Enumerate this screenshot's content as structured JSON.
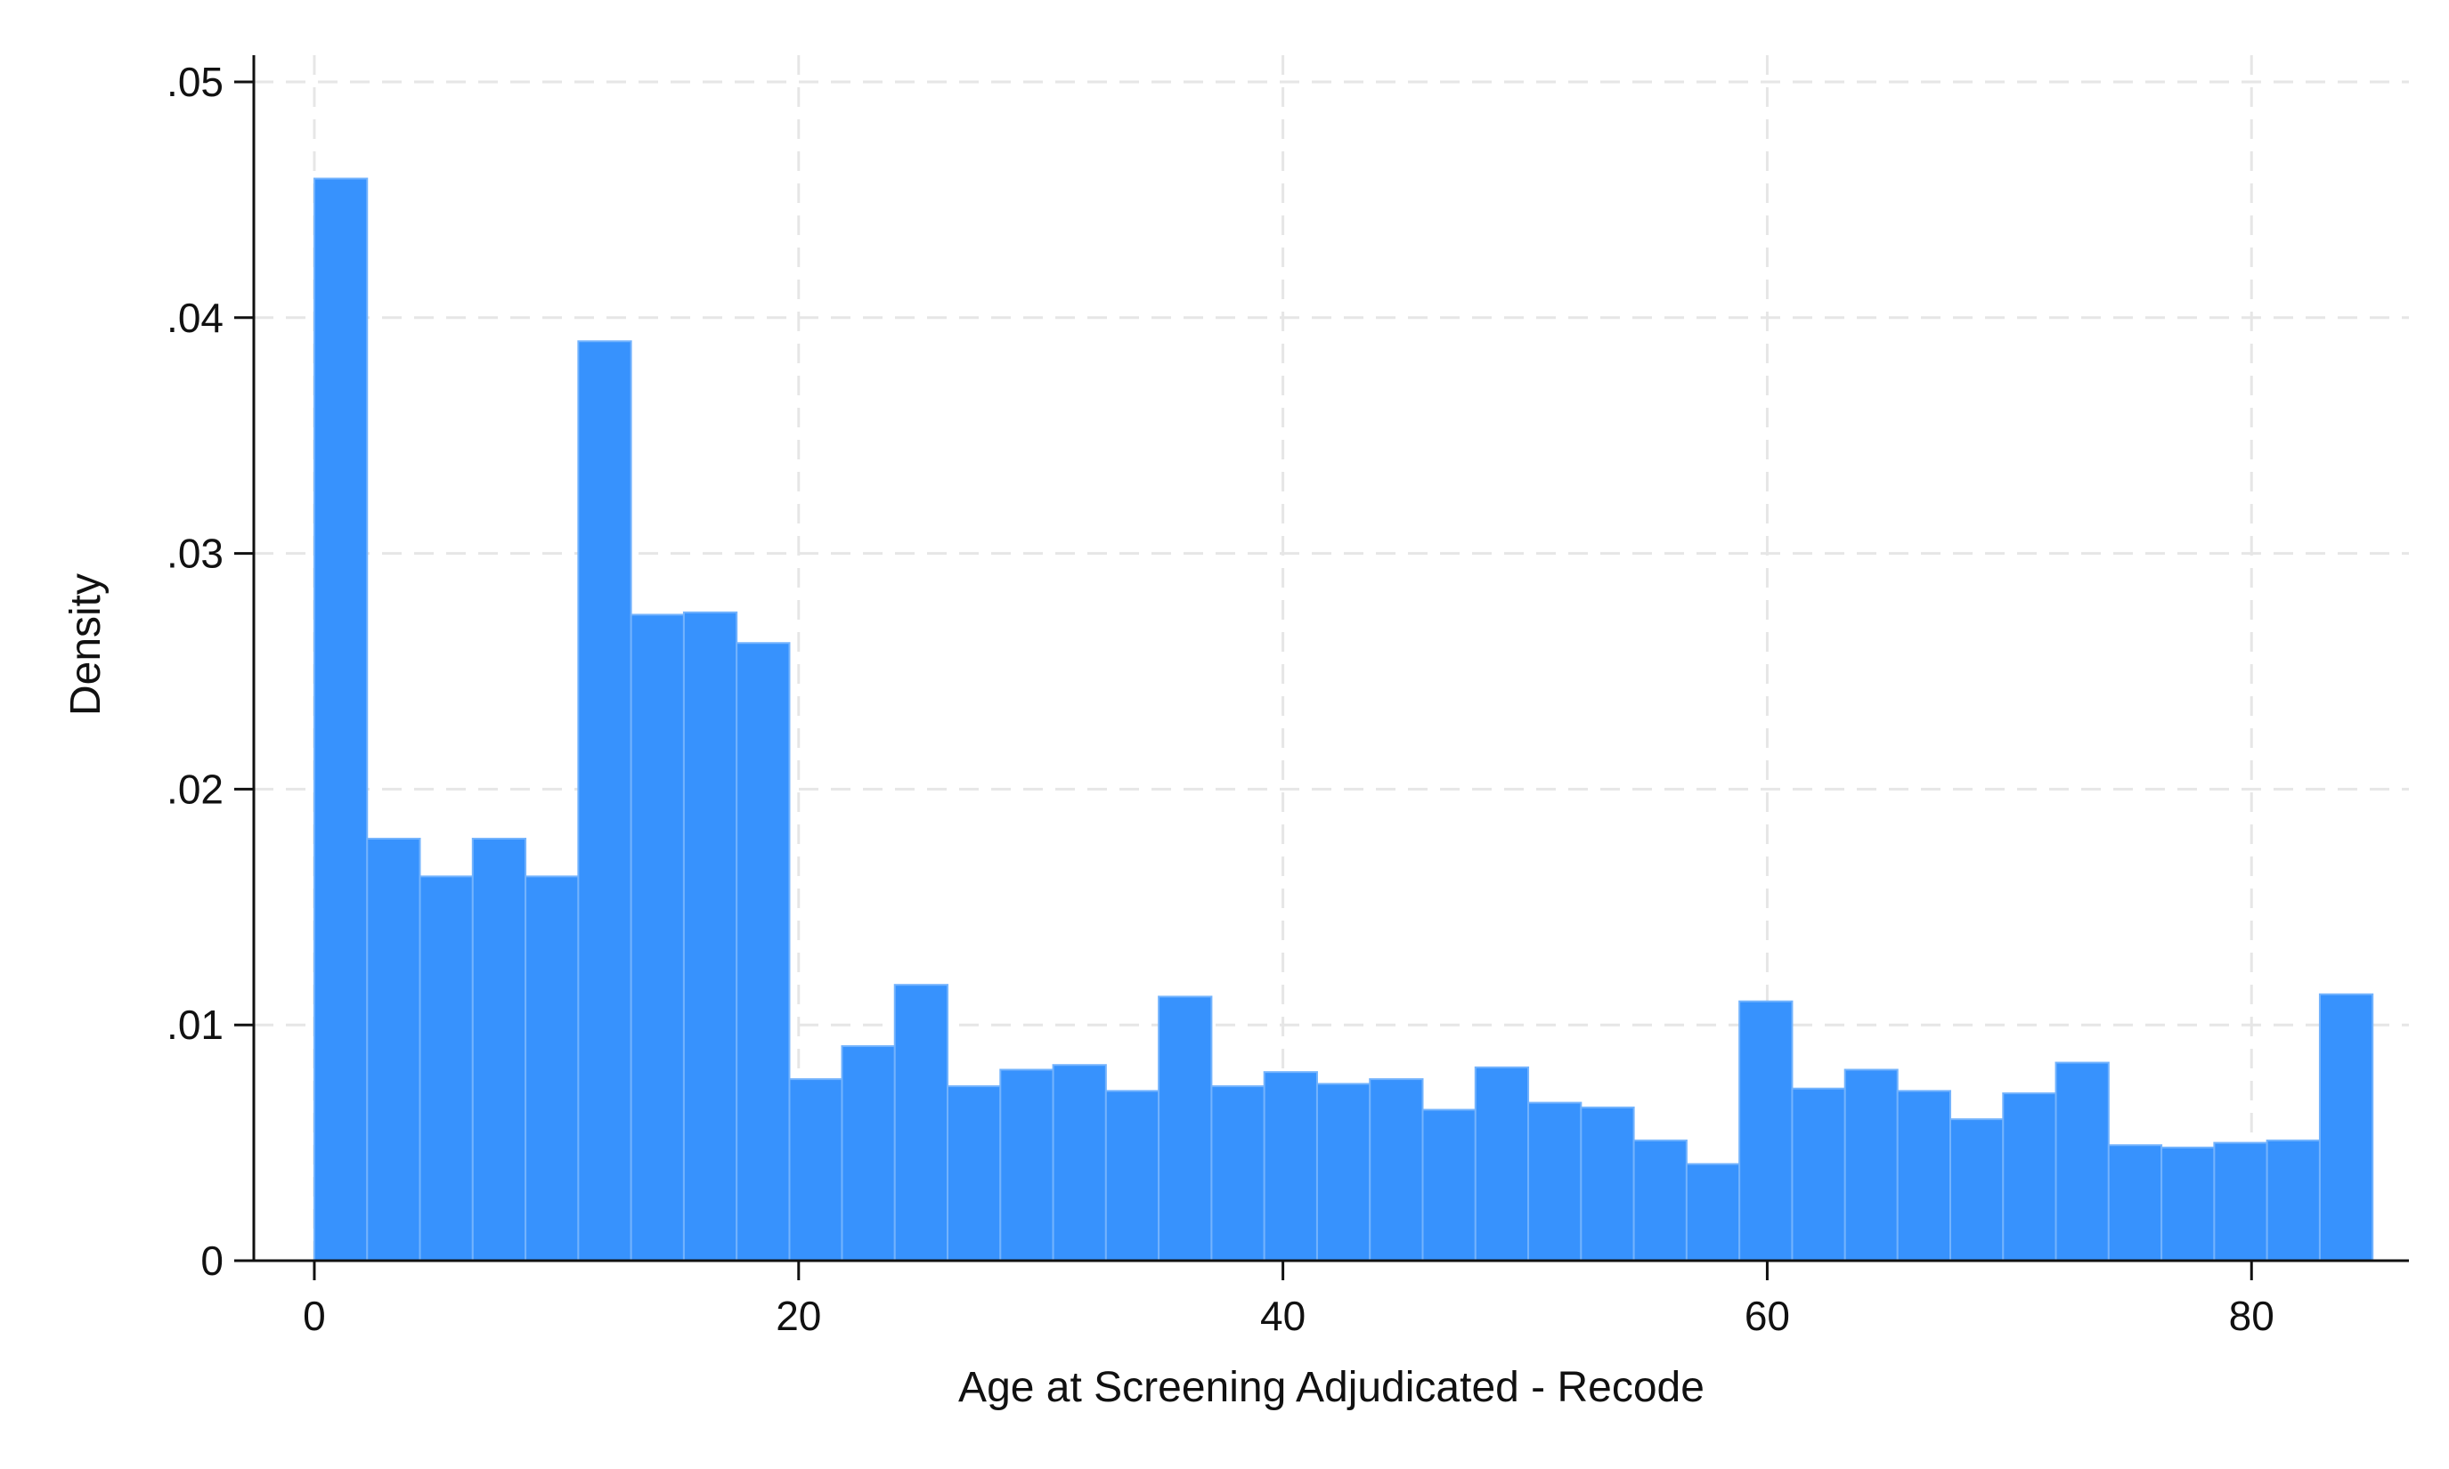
{
  "chart_data": {
    "type": "bar",
    "title": "",
    "xlabel": "Age at Screening Adjudicated - Recode",
    "ylabel": "Density",
    "xlim": [
      -2.5,
      86.5
    ],
    "ylim": [
      0,
      0.05
    ],
    "x_ticks": [
      0,
      20,
      40,
      60,
      80
    ],
    "x_tick_labels": [
      "0",
      "20",
      "40",
      "60",
      "80"
    ],
    "y_ticks": [
      0,
      0.01,
      0.02,
      0.03,
      0.04,
      0.05
    ],
    "y_tick_labels": [
      "0",
      ".01",
      ".02",
      ".03",
      ".04",
      ".05"
    ],
    "grid": true,
    "bar_color": "#3792fd",
    "bar_edge_color": "#73b3fd",
    "bins": [
      {
        "x0": 0.0,
        "x1": 2.18,
        "value": 0.0459
      },
      {
        "x0": 2.18,
        "x1": 4.36,
        "value": 0.0179
      },
      {
        "x0": 4.36,
        "x1": 6.54,
        "value": 0.0163
      },
      {
        "x0": 6.54,
        "x1": 8.72,
        "value": 0.0179
      },
      {
        "x0": 8.72,
        "x1": 10.9,
        "value": 0.0163
      },
      {
        "x0": 10.9,
        "x1": 13.08,
        "value": 0.039
      },
      {
        "x0": 13.08,
        "x1": 15.26,
        "value": 0.0274
      },
      {
        "x0": 15.26,
        "x1": 17.44,
        "value": 0.0275
      },
      {
        "x0": 17.44,
        "x1": 19.62,
        "value": 0.0262
      },
      {
        "x0": 19.62,
        "x1": 21.79,
        "value": 0.0077
      },
      {
        "x0": 21.79,
        "x1": 23.97,
        "value": 0.0091
      },
      {
        "x0": 23.97,
        "x1": 26.15,
        "value": 0.0117
      },
      {
        "x0": 26.15,
        "x1": 28.33,
        "value": 0.0074
      },
      {
        "x0": 28.33,
        "x1": 30.51,
        "value": 0.0081
      },
      {
        "x0": 30.51,
        "x1": 32.69,
        "value": 0.0083
      },
      {
        "x0": 32.69,
        "x1": 34.87,
        "value": 0.0072
      },
      {
        "x0": 34.87,
        "x1": 37.05,
        "value": 0.0112
      },
      {
        "x0": 37.05,
        "x1": 39.23,
        "value": 0.0074
      },
      {
        "x0": 39.23,
        "x1": 41.41,
        "value": 0.008
      },
      {
        "x0": 41.41,
        "x1": 43.59,
        "value": 0.0075
      },
      {
        "x0": 43.59,
        "x1": 45.77,
        "value": 0.0077
      },
      {
        "x0": 45.77,
        "x1": 47.95,
        "value": 0.0064
      },
      {
        "x0": 47.95,
        "x1": 50.13,
        "value": 0.0082
      },
      {
        "x0": 50.13,
        "x1": 52.31,
        "value": 0.0067
      },
      {
        "x0": 52.31,
        "x1": 54.49,
        "value": 0.0065
      },
      {
        "x0": 54.49,
        "x1": 56.67,
        "value": 0.0051
      },
      {
        "x0": 56.67,
        "x1": 58.85,
        "value": 0.0041
      },
      {
        "x0": 58.85,
        "x1": 61.03,
        "value": 0.011
      },
      {
        "x0": 61.03,
        "x1": 63.21,
        "value": 0.0073
      },
      {
        "x0": 63.21,
        "x1": 65.38,
        "value": 0.0081
      },
      {
        "x0": 65.38,
        "x1": 67.56,
        "value": 0.0072
      },
      {
        "x0": 67.56,
        "x1": 69.74,
        "value": 0.006
      },
      {
        "x0": 69.74,
        "x1": 71.92,
        "value": 0.0071
      },
      {
        "x0": 71.92,
        "x1": 74.1,
        "value": 0.0084
      },
      {
        "x0": 74.1,
        "x1": 76.28,
        "value": 0.0049
      },
      {
        "x0": 76.28,
        "x1": 78.46,
        "value": 0.0048
      },
      {
        "x0": 78.46,
        "x1": 80.64,
        "value": 0.005
      },
      {
        "x0": 80.64,
        "x1": 82.82,
        "value": 0.0051
      },
      {
        "x0": 82.82,
        "x1": 85.0,
        "value": 0.0113
      }
    ]
  }
}
